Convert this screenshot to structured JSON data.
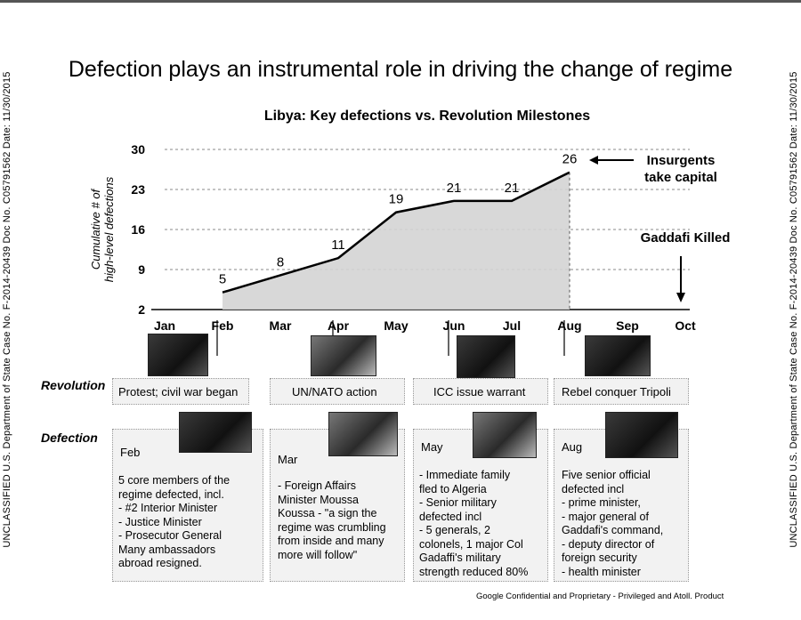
{
  "side_text": "UNCLASSIFIED U.S. Department of State Case No. F-2014-20439 Doc No. C05791562 Date: 11/30/2015",
  "title": "Defection plays an instrumental role in driving the change of regime",
  "chart_data": {
    "type": "area",
    "title": "Libya: Key defections vs. Revolution Milestones",
    "ylabel": "Cumulative # of high-level defections",
    "categories": [
      "Jan",
      "Feb",
      "Mar",
      "Apr",
      "May",
      "Jun",
      "Jul",
      "Aug",
      "Sep",
      "Oct"
    ],
    "y_ticks": [
      30,
      23,
      16,
      9,
      2
    ],
    "ylim": [
      2,
      30
    ],
    "series": [
      {
        "values": [
          null,
          5,
          8,
          11,
          19,
          21,
          21,
          26,
          null,
          null
        ],
        "labels": [
          "",
          "5",
          "8",
          "11",
          "19",
          "21",
          "21",
          "26",
          "",
          ""
        ]
      }
    ],
    "annotations": [
      {
        "text": "Insurgents take capital",
        "target": "Aug",
        "arrow": "left"
      },
      {
        "text": "Gaddafi Killed",
        "target": "Oct",
        "arrow": "down"
      }
    ],
    "grid": true
  },
  "rows": {
    "revolution": "Revolution",
    "defection": "Defection"
  },
  "revolution": [
    {
      "text": "Protest; civil war began"
    },
    {
      "text": "UN/NATO action"
    },
    {
      "text": "ICC issue warrant"
    },
    {
      "text": "Rebel conquer Tripoli"
    }
  ],
  "defection": [
    {
      "month": "Feb",
      "lines": [
        "5 core members of the",
        "regime defected, incl.",
        "- #2 Interior Minister",
        "- Justice Minister",
        "- Prosecutor General",
        "Many ambassadors",
        "abroad resigned."
      ]
    },
    {
      "month": "Mar",
      "lines": [
        "- Foreign Affairs",
        "Minister Moussa",
        "Koussa - \"a sign the",
        "regime was crumbling",
        "from inside and many",
        "more will follow\""
      ]
    },
    {
      "month": "May",
      "lines": [
        "- Immediate family",
        "fled to Algeria",
        "- Senior military",
        "defected incl",
        "- 5 generals, 2",
        "colonels, 1 major Col",
        "Gadaffi's military",
        "strength reduced 80%"
      ]
    },
    {
      "month": "Aug",
      "lines": [
        "Five senior official",
        "defected incl",
        "- prime minister,",
        "- major general of",
        "Gaddafi's command,",
        "- deputy director of",
        "foreign security",
        "- health minister"
      ]
    }
  ],
  "footer": "Google Confidential and Proprietary - Privileged and Atoll. Product",
  "colors": {
    "area_fill": "#d4d4d4",
    "line": "#000000",
    "box_fill": "#f2f2f2"
  }
}
